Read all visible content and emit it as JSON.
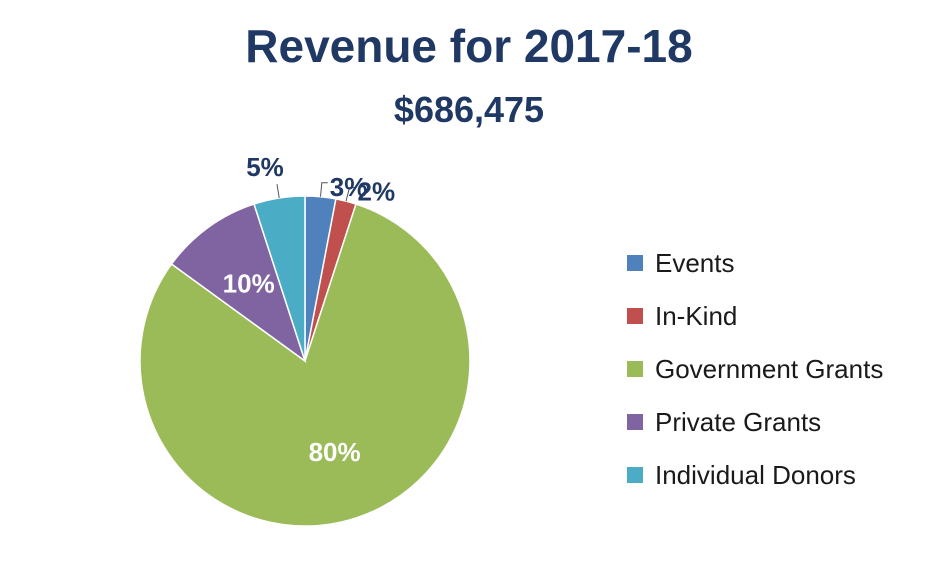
{
  "chart_data": {
    "type": "pie",
    "title": "Revenue for 2017-18",
    "subtitle": "$686,475",
    "legend_position": "right",
    "slices": [
      {
        "label": "Events",
        "value": 3,
        "display": "3%",
        "color": "#4f81bd"
      },
      {
        "label": "In-Kind",
        "value": 2,
        "display": "2%",
        "color": "#c0504d"
      },
      {
        "label": "Government Grants",
        "value": 80,
        "display": "80%",
        "color": "#9bbb59"
      },
      {
        "label": "Private Grants",
        "value": 10,
        "display": "10%",
        "color": "#8064a2"
      },
      {
        "label": "Individual Donors",
        "value": 5,
        "display": "5%",
        "color": "#4bacc6"
      }
    ]
  }
}
